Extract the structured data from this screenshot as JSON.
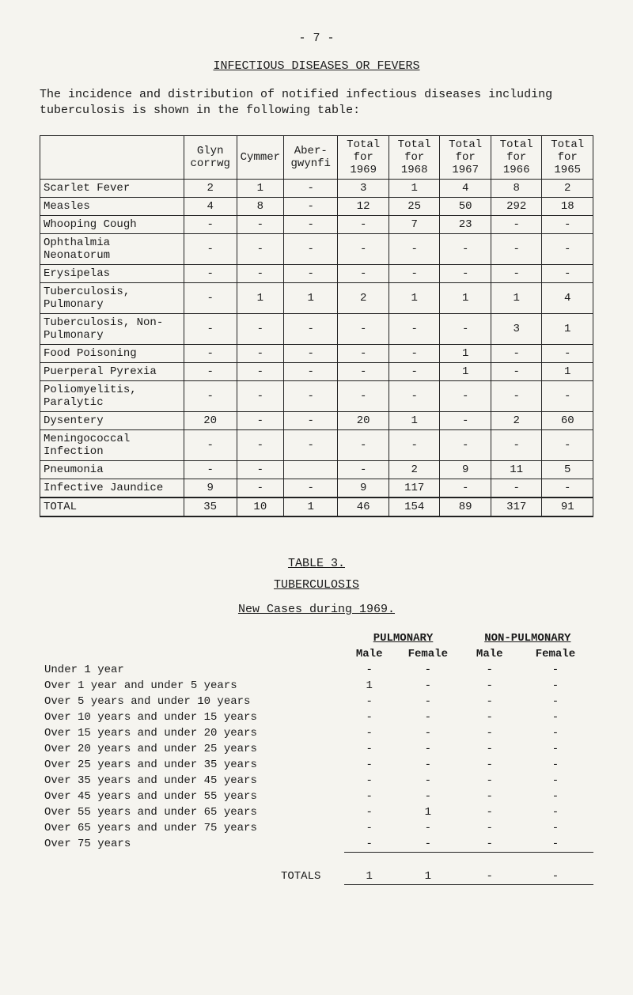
{
  "page_number": "- 7 -",
  "main_heading": "INFECTIOUS DISEASES OR FEVERS",
  "intro_text": "The incidence and distribution of notified infectious diseases including tuberculosis is shown in the following table:",
  "table1": {
    "col_headers": [
      "",
      "Glyn corrwg",
      "Cymmer",
      "Aber- gwynfi",
      "Total for 1969",
      "Total for 1968",
      "Total for 1967",
      "Total for 1966",
      "Total for 1965"
    ],
    "rows": [
      {
        "label": "Scarlet Fever",
        "c": [
          "2",
          "1",
          "-",
          "3",
          "1",
          "4",
          "8",
          "2"
        ]
      },
      {
        "label": "Measles",
        "c": [
          "4",
          "8",
          "-",
          "12",
          "25",
          "50",
          "292",
          "18"
        ]
      },
      {
        "label": "Whooping Cough",
        "c": [
          "-",
          "-",
          "-",
          "-",
          "7",
          "23",
          "-",
          "-"
        ]
      },
      {
        "label": "Ophthalmia Neonatorum",
        "c": [
          "-",
          "-",
          "-",
          "-",
          "-",
          "-",
          "-",
          "-"
        ]
      },
      {
        "label": "Erysipelas",
        "c": [
          "-",
          "-",
          "-",
          "-",
          "-",
          "-",
          "-",
          "-"
        ]
      },
      {
        "label": "Tuberculosis, Pulmonary",
        "c": [
          "-",
          "1",
          "1",
          "2",
          "1",
          "1",
          "1",
          "4"
        ]
      },
      {
        "label": "Tuberculosis, Non-Pulmonary",
        "c": [
          "-",
          "-",
          "-",
          "-",
          "-",
          "-",
          "3",
          "1"
        ]
      },
      {
        "label": "Food Poisoning",
        "c": [
          "-",
          "-",
          "-",
          "-",
          "-",
          "1",
          "-",
          "-"
        ]
      },
      {
        "label": "Puerperal Pyrexia",
        "c": [
          "-",
          "-",
          "-",
          "-",
          "-",
          "1",
          "-",
          "1"
        ]
      },
      {
        "label": "Poliomyelitis, Paralytic",
        "c": [
          "-",
          "-",
          "-",
          "-",
          "-",
          "-",
          "-",
          "-"
        ]
      },
      {
        "label": "Dysentery",
        "c": [
          "20",
          "-",
          "-",
          "20",
          "1",
          "-",
          "2",
          "60"
        ]
      },
      {
        "label": "Meningococcal Infection",
        "c": [
          "-",
          "-",
          "-",
          "-",
          "-",
          "-",
          "-",
          "-"
        ]
      },
      {
        "label": "Pneumonia",
        "c": [
          "-",
          "-",
          "",
          "-",
          "2",
          "9",
          "11",
          "5"
        ]
      },
      {
        "label": "Infective Jaundice",
        "c": [
          "9",
          "-",
          "-",
          "9",
          "117",
          "-",
          "-",
          "-"
        ]
      }
    ],
    "total_row": {
      "label": "TOTAL",
      "c": [
        "35",
        "10",
        "1",
        "46",
        "154",
        "89",
        "317",
        "91"
      ]
    }
  },
  "table3_label": "TABLE 3.",
  "tuberculosis_label": "TUBERCULOSIS",
  "new_cases_label": "New Cases during 1969.",
  "table2": {
    "group_headers": {
      "pulm": "PULMONARY",
      "nonpulm": "NON-PULMONARY"
    },
    "sub_headers": [
      "Male",
      "Female",
      "Male",
      "Female"
    ],
    "rows": [
      {
        "label": "Under 1 year",
        "c": [
          "-",
          "-",
          "-",
          "-"
        ]
      },
      {
        "label": "Over 1 year and under 5 years",
        "c": [
          "1",
          "-",
          "-",
          "-"
        ]
      },
      {
        "label": "Over 5 years and under 10 years",
        "c": [
          "-",
          "-",
          "-",
          "-"
        ]
      },
      {
        "label": "Over 10 years and under 15 years",
        "c": [
          "-",
          "-",
          "-",
          "-"
        ]
      },
      {
        "label": "Over 15 years and under 20 years",
        "c": [
          "-",
          "-",
          "-",
          "-"
        ]
      },
      {
        "label": "Over 20 years and under 25 years",
        "c": [
          "-",
          "-",
          "-",
          "-"
        ]
      },
      {
        "label": "Over 25 years and under 35 years",
        "c": [
          "-",
          "-",
          "-",
          "-"
        ]
      },
      {
        "label": "Over 35 years and under 45 years",
        "c": [
          "-",
          "-",
          "-",
          "-"
        ]
      },
      {
        "label": "Over 45 years and under 55 years",
        "c": [
          "-",
          "-",
          "-",
          "-"
        ]
      },
      {
        "label": "Over 55 years and under 65 years",
        "c": [
          "-",
          "1",
          "-",
          "-"
        ]
      },
      {
        "label": "Over 65 years and under 75 years",
        "c": [
          "-",
          "-",
          "-",
          "-"
        ]
      },
      {
        "label": "Over 75 years",
        "c": [
          "-",
          "-",
          "-",
          "-"
        ]
      }
    ],
    "totals_label": "TOTALS",
    "totals": [
      "1",
      "1",
      "-",
      "-"
    ]
  }
}
